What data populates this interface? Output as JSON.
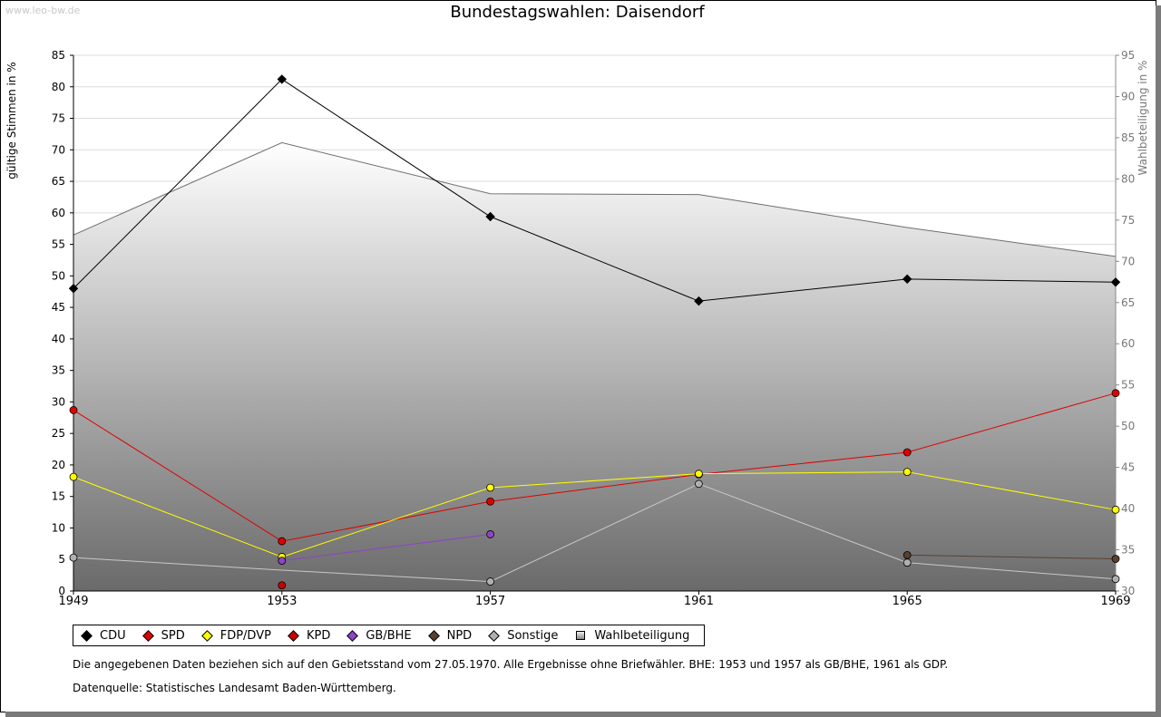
{
  "watermark": "www.leo-bw.de",
  "chart_data": {
    "type": "line",
    "title": "Bundestagswahlen: Daisendorf",
    "ylabel": "gültige Stimmen in %",
    "y2label": "Wahlbeteiligung in %",
    "ylim": [
      0,
      85
    ],
    "y2lim": [
      30,
      95
    ],
    "yticks": [
      0,
      5,
      10,
      15,
      20,
      25,
      30,
      35,
      40,
      45,
      50,
      55,
      60,
      65,
      70,
      75,
      80,
      85
    ],
    "y2ticks": [
      30,
      35,
      40,
      45,
      50,
      55,
      60,
      65,
      70,
      75,
      80,
      85,
      90,
      95
    ],
    "categories": [
      "1949",
      "1953",
      "1957",
      "1961",
      "1965",
      "1969"
    ],
    "series": [
      {
        "name": "CDU",
        "color": "#000000",
        "values": [
          48.0,
          81.2,
          59.4,
          46.0,
          49.5,
          49.0
        ]
      },
      {
        "name": "SPD",
        "color": "#e00000",
        "values": [
          28.7,
          7.9,
          14.2,
          18.5,
          22.0,
          31.4
        ]
      },
      {
        "name": "FDP/DVP",
        "color": "#ffff00",
        "values": [
          18.1,
          5.4,
          16.4,
          18.6,
          18.9,
          12.9
        ]
      },
      {
        "name": "KPD",
        "color": "#cc0000",
        "values": [
          null,
          0.9,
          null,
          null,
          null,
          null
        ]
      },
      {
        "name": "GB/BHE",
        "color": "#8e44c8",
        "values": [
          null,
          4.8,
          9.0,
          null,
          null,
          null
        ]
      },
      {
        "name": "NPD",
        "color": "#5a4030",
        "values": [
          null,
          null,
          null,
          null,
          5.7,
          5.1
        ]
      },
      {
        "name": "Sonstige",
        "color": "#b0b0b0",
        "values": [
          5.3,
          null,
          1.5,
          17.0,
          4.5,
          1.9
        ]
      }
    ],
    "sonstige_line": [
      5.3,
      3.3,
      1.5,
      17.0,
      4.5,
      1.9
    ],
    "turnout": {
      "name": "Wahlbeteiligung",
      "values": [
        73.2,
        84.4,
        78.2,
        78.1,
        74.1,
        70.6
      ]
    }
  },
  "legend": [
    {
      "label": "CDU",
      "color": "#000000"
    },
    {
      "label": "SPD",
      "color": "#e00000"
    },
    {
      "label": "FDP/DVP",
      "color": "#ffff00"
    },
    {
      "label": "KPD",
      "color": "#cc0000"
    },
    {
      "label": "GB/BHE",
      "color": "#8e44c8"
    },
    {
      "label": "NPD",
      "color": "#5a4030"
    },
    {
      "label": "Sonstige",
      "color": "#b0b0b0"
    }
  ],
  "legend_turnout": "Wahlbeteiligung",
  "notes": {
    "line1": "Die angegebenen Daten beziehen sich auf den Gebietsstand vom 27.05.1970. Alle Ergebnisse ohne Briefwähler. BHE: 1953 und 1957 als GB/BHE, 1961 als GDP.",
    "line2": "Datenquelle: Statistisches Landesamt Baden-Württemberg."
  }
}
